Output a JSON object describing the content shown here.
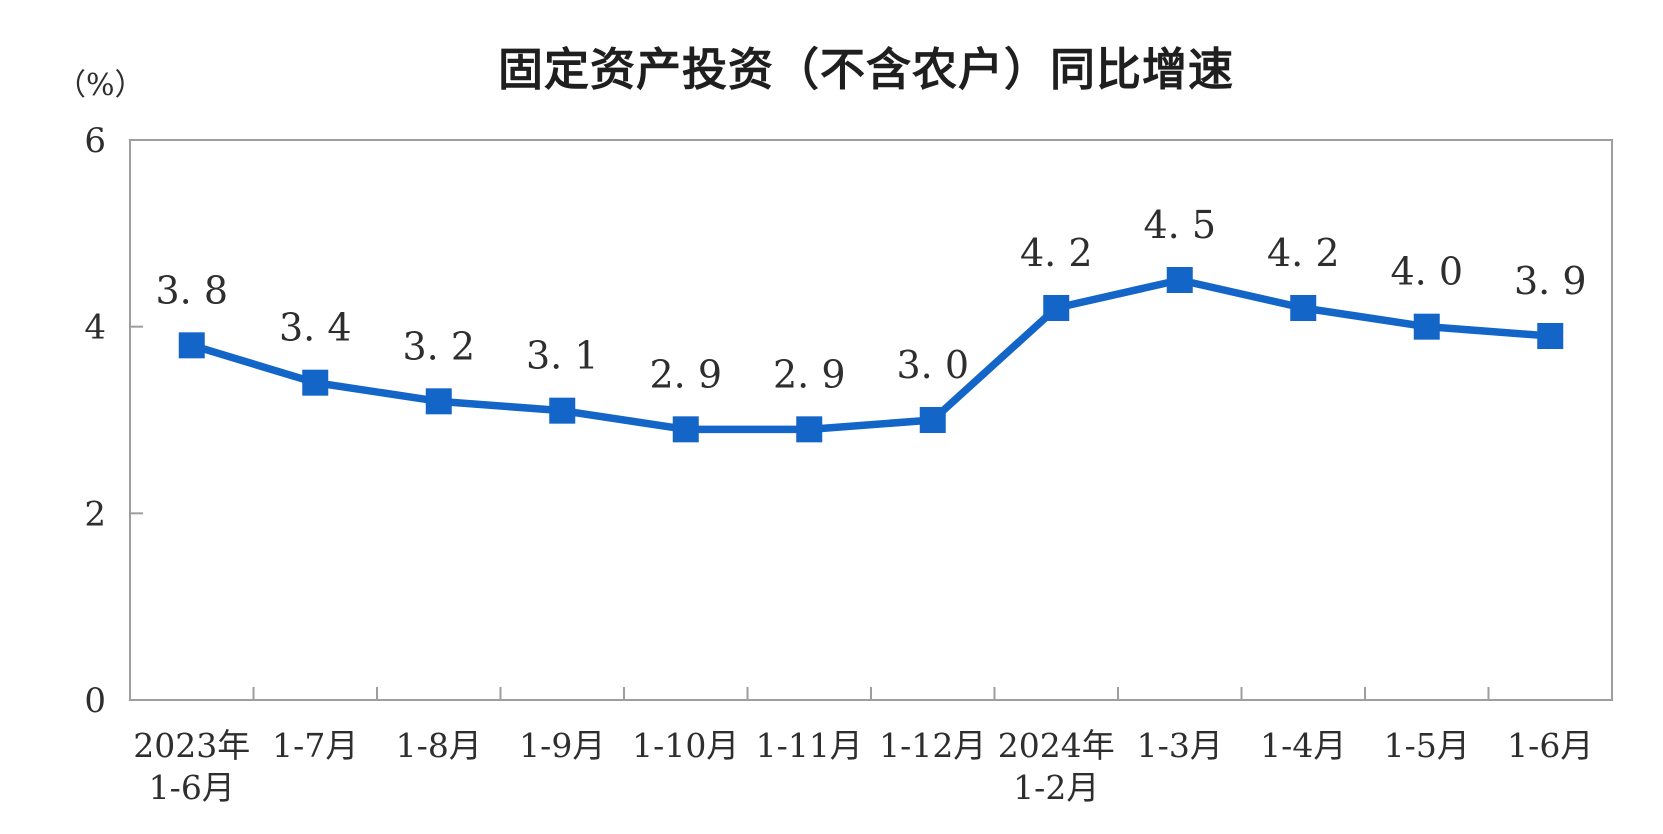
{
  "chart_data": {
    "type": "line",
    "title": "固定资产投资（不含农户）同比增速",
    "unit_label": "（%）",
    "xlabel": "",
    "ylabel": "（%）",
    "ylim": [
      0,
      6
    ],
    "y_ticks": [
      0,
      2,
      4,
      6
    ],
    "grid": false,
    "legend": "none",
    "marker": "square",
    "categories_line1": [
      "2023年",
      "1-7月",
      "1-8月",
      "1-9月",
      "1-10月",
      "1-11月",
      "1-12月",
      "2024年",
      "1-3月",
      "1-4月",
      "1-5月",
      "1-6月"
    ],
    "categories_line2": [
      "1-6月",
      "",
      "",
      "",
      "",
      "",
      "",
      "1-2月",
      "",
      "",
      "",
      ""
    ],
    "values": [
      3.8,
      3.4,
      3.2,
      3.1,
      2.9,
      2.9,
      3.0,
      4.2,
      4.5,
      4.2,
      4.0,
      3.9
    ],
    "point_labels": [
      "3. 8",
      "3. 4",
      "3. 2",
      "3. 1",
      "2. 9",
      "2. 9",
      "3. 0",
      "4. 2",
      "4. 5",
      "4. 2",
      "4. 0",
      "3. 9"
    ],
    "colors": {
      "line": "#1465c8",
      "marker": "#1465c8",
      "axis": "#9e9e9e",
      "text": "#2e2e2e",
      "title": "#1f1f1f"
    }
  }
}
